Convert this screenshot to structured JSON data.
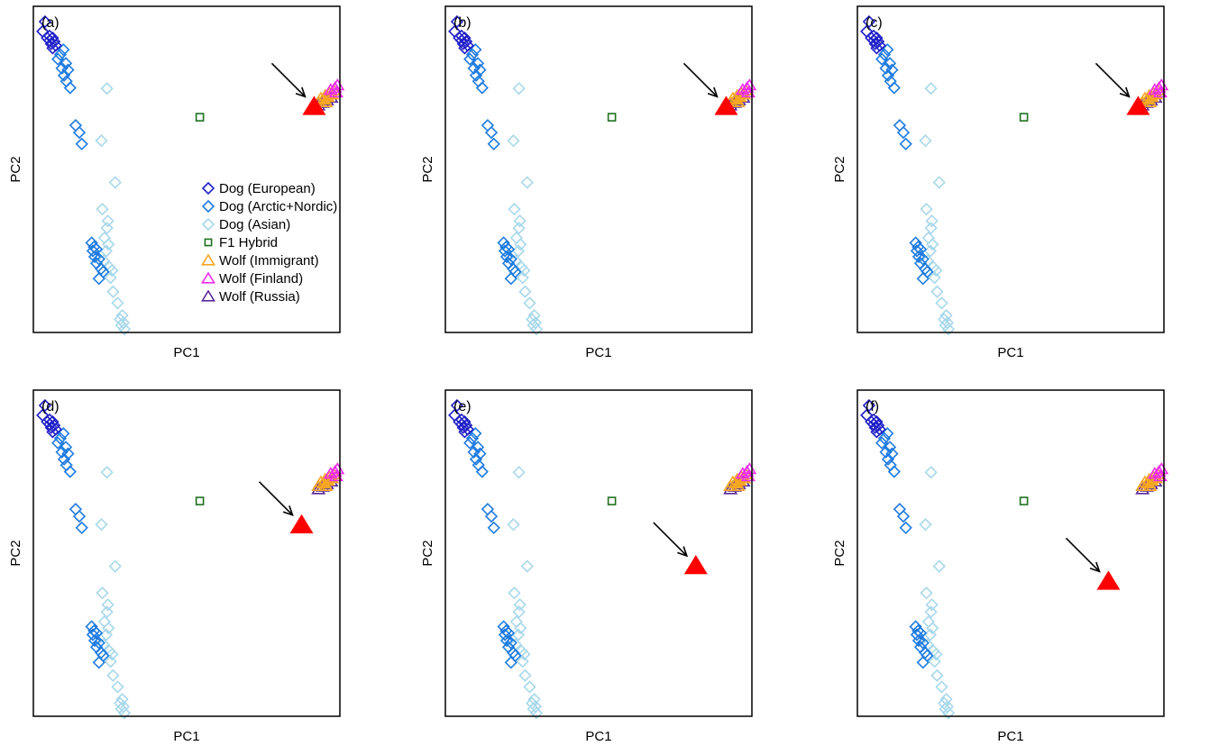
{
  "chart_data": [
    {
      "type": "scatter",
      "panel_label": "(a)",
      "xlabel": "PC1",
      "ylabel": "PC2",
      "xlim": [
        0,
        1
      ],
      "ylim": [
        0,
        1
      ],
      "axis_ticks": false,
      "legend_position": "center-right",
      "legend": [
        {
          "label": "Dog (European)",
          "series": "dog_european"
        },
        {
          "label": "Dog (Arctic+Nordic)",
          "series": "dog_arctic_nordic"
        },
        {
          "label": "Dog (Asian)",
          "series": "dog_asian"
        },
        {
          "label": "F1 Hybrid",
          "series": "f1_hybrid"
        },
        {
          "label": "Wolf (Immigrant)",
          "series": "wolf_immigrant"
        },
        {
          "label": "Wolf (Finland)",
          "series": "wolf_finland"
        },
        {
          "label": "Wolf (Russia)",
          "series": "wolf_russia"
        }
      ],
      "highlight": {
        "x": 0.916,
        "y": 0.698
      }
    },
    {
      "type": "scatter",
      "panel_label": "(b)",
      "xlabel": "PC1",
      "ylabel": "PC2",
      "xlim": [
        0,
        1
      ],
      "ylim": [
        0,
        1
      ],
      "axis_ticks": false,
      "highlight": {
        "x": 0.916,
        "y": 0.698
      }
    },
    {
      "type": "scatter",
      "panel_label": "(c)",
      "xlabel": "PC1",
      "ylabel": "PC2",
      "xlim": [
        0,
        1
      ],
      "ylim": [
        0,
        1
      ],
      "axis_ticks": false,
      "highlight": {
        "x": 0.916,
        "y": 0.698
      }
    },
    {
      "type": "scatter",
      "panel_label": "(d)",
      "xlabel": "PC1",
      "ylabel": "PC2",
      "xlim": [
        0,
        1
      ],
      "ylim": [
        0,
        1
      ],
      "axis_ticks": false,
      "highlight": {
        "x": 0.875,
        "y": 0.592
      }
    },
    {
      "type": "scatter",
      "panel_label": "(e)",
      "xlabel": "PC1",
      "ylabel": "PC2",
      "xlim": [
        0,
        1
      ],
      "ylim": [
        0,
        1
      ],
      "axis_ticks": false,
      "highlight": {
        "x": 0.817,
        "y": 0.467
      }
    },
    {
      "type": "scatter",
      "panel_label": "(f)",
      "xlabel": "PC1",
      "ylabel": "PC2",
      "xlim": [
        0,
        1
      ],
      "ylim": [
        0,
        1
      ],
      "axis_ticks": false,
      "highlight": {
        "x": 0.819,
        "y": 0.419
      }
    }
  ],
  "series": {
    "dog_european": {
      "color": "#2020c8",
      "shape": "diamond",
      "points": [
        [
          0.038,
          0.953
        ],
        [
          0.03,
          0.923
        ],
        [
          0.053,
          0.909
        ],
        [
          0.063,
          0.903
        ],
        [
          0.053,
          0.895
        ],
        [
          0.045,
          0.903
        ],
        [
          0.068,
          0.892
        ],
        [
          0.058,
          0.885
        ],
        [
          0.073,
          0.88
        ],
        [
          0.063,
          0.872
        ]
      ]
    },
    "dog_arctic_nordic": {
      "color": "#1e7be0",
      "shape": "diamond",
      "points": [
        [
          0.098,
          0.867
        ],
        [
          0.088,
          0.852
        ],
        [
          0.08,
          0.838
        ],
        [
          0.106,
          0.825
        ],
        [
          0.093,
          0.81
        ],
        [
          0.113,
          0.805
        ],
        [
          0.1,
          0.788
        ],
        [
          0.108,
          0.77
        ],
        [
          0.12,
          0.75
        ],
        [
          0.138,
          0.635
        ],
        [
          0.15,
          0.613
        ],
        [
          0.158,
          0.578
        ],
        [
          0.19,
          0.275
        ],
        [
          0.198,
          0.262
        ],
        [
          0.206,
          0.255
        ],
        [
          0.194,
          0.25
        ],
        [
          0.2,
          0.232
        ],
        [
          0.214,
          0.225
        ],
        [
          0.206,
          0.212
        ],
        [
          0.221,
          0.195
        ],
        [
          0.228,
          0.186
        ],
        [
          0.214,
          0.165
        ]
      ]
    },
    "dog_asian": {
      "color": "#a8d8ea",
      "shape": "diamond",
      "points": [
        [
          0.24,
          0.748
        ],
        [
          0.222,
          0.588
        ],
        [
          0.267,
          0.46
        ],
        [
          0.225,
          0.378
        ],
        [
          0.243,
          0.342
        ],
        [
          0.24,
          0.32
        ],
        [
          0.232,
          0.29
        ],
        [
          0.245,
          0.27
        ],
        [
          0.238,
          0.25
        ],
        [
          0.229,
          0.22
        ],
        [
          0.248,
          0.2
        ],
        [
          0.257,
          0.19
        ],
        [
          0.252,
          0.168
        ],
        [
          0.26,
          0.125
        ],
        [
          0.275,
          0.09
        ],
        [
          0.29,
          0.052
        ],
        [
          0.283,
          0.04
        ],
        [
          0.294,
          0.03
        ],
        [
          0.287,
          0.022
        ],
        [
          0.297,
          0.01
        ]
      ]
    },
    "f1_hybrid": {
      "color": "#207020",
      "shape": "square",
      "points": [
        [
          0.543,
          0.66
        ]
      ]
    },
    "wolf_immigrant": {
      "color": "#f5a623",
      "shape": "triangle",
      "points": [
        [
          0.938,
          0.718
        ],
        [
          0.952,
          0.726
        ],
        [
          0.966,
          0.734
        ],
        [
          0.98,
          0.742
        ],
        [
          0.93,
          0.706
        ],
        [
          0.946,
          0.714
        ],
        [
          0.96,
          0.722
        ],
        [
          0.974,
          0.73
        ],
        [
          0.955,
          0.706
        ]
      ]
    },
    "wolf_finland": {
      "color": "#ee2cee",
      "shape": "triangle",
      "points": [
        [
          0.984,
          0.75
        ],
        [
          0.992,
          0.758
        ],
        [
          0.97,
          0.744
        ],
        [
          0.988,
          0.736
        ]
      ]
    },
    "wolf_russia": {
      "color": "#5a2a9a",
      "shape": "triangle",
      "points": [
        [
          0.93,
          0.696
        ],
        [
          0.944,
          0.704
        ],
        [
          0.958,
          0.712
        ],
        [
          0.972,
          0.72
        ]
      ]
    }
  },
  "colors": {
    "highlight": "#ff0000",
    "arrow": "#000000",
    "frame": "#000000"
  }
}
